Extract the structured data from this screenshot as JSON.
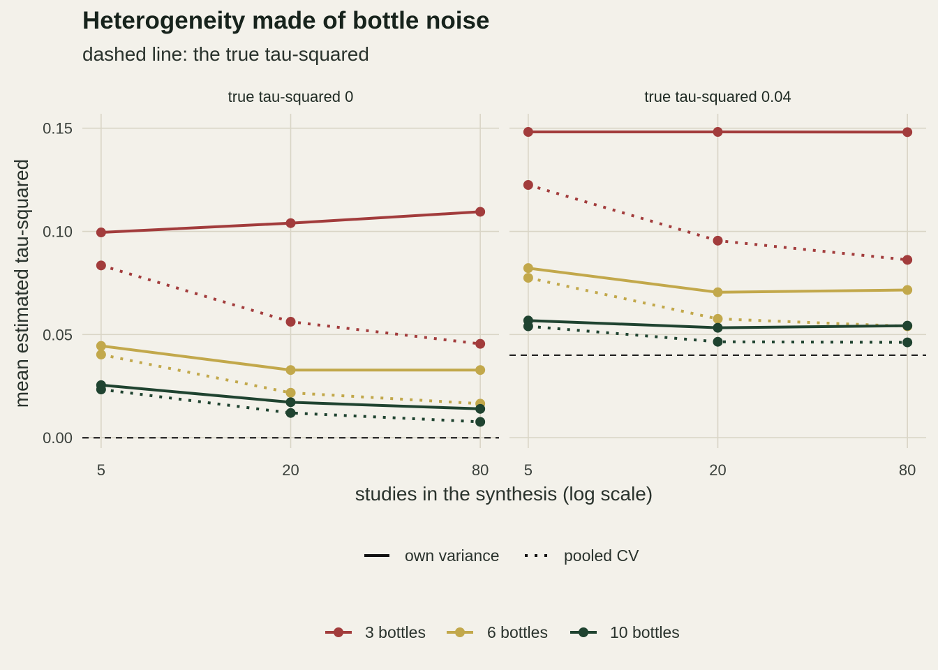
{
  "title": "Heterogeneity made of bottle noise",
  "subtitle": "dashed line: the true tau-squared",
  "chart_data": {
    "type": "line",
    "x_scale": "log",
    "xlabel": "studies in the synthesis (log scale)",
    "ylabel": "mean estimated tau-squared",
    "x": [
      5,
      20,
      80
    ],
    "x_tick_labels": [
      "5",
      "20",
      "80"
    ],
    "y_ticks": [
      0,
      0.05,
      0.1,
      0.15
    ],
    "y_tick_labels": [
      "0.00",
      "0.05",
      "0.10",
      "0.15"
    ],
    "ylim": [
      -0.005,
      0.157
    ],
    "grid": true,
    "facets": [
      {
        "strip": "true tau-squared 0",
        "true_tau2": 0,
        "series": [
          {
            "bottles": "3 bottles",
            "method": "own variance",
            "values": [
              0.0995,
              0.104,
              0.1095
            ]
          },
          {
            "bottles": "3 bottles",
            "method": "pooled CV",
            "values": [
              0.0835,
              0.0562,
              0.0455
            ]
          },
          {
            "bottles": "6 bottles",
            "method": "own variance",
            "values": [
              0.0445,
              0.0328,
              0.0328
            ]
          },
          {
            "bottles": "6 bottles",
            "method": "pooled CV",
            "values": [
              0.0403,
              0.0218,
              0.0165
            ]
          },
          {
            "bottles": "10 bottles",
            "method": "own variance",
            "values": [
              0.0255,
              0.0172,
              0.014
            ]
          },
          {
            "bottles": "10 bottles",
            "method": "pooled CV",
            "values": [
              0.0234,
              0.012,
              0.0077
            ]
          }
        ]
      },
      {
        "strip": "true tau-squared 0.04",
        "true_tau2": 0.04,
        "series": [
          {
            "bottles": "3 bottles",
            "method": "own variance",
            "values": [
              0.1482,
              0.1482,
              0.1481
            ]
          },
          {
            "bottles": "3 bottles",
            "method": "pooled CV",
            "values": [
              0.1225,
              0.0955,
              0.0862
            ]
          },
          {
            "bottles": "6 bottles",
            "method": "own variance",
            "values": [
              0.0822,
              0.0705,
              0.0716
            ]
          },
          {
            "bottles": "6 bottles",
            "method": "pooled CV",
            "values": [
              0.0775,
              0.0576,
              0.054
            ]
          },
          {
            "bottles": "10 bottles",
            "method": "own variance",
            "values": [
              0.0568,
              0.0533,
              0.0543
            ]
          },
          {
            "bottles": "10 bottles",
            "method": "pooled CV",
            "values": [
              0.054,
              0.0465,
              0.0462
            ]
          }
        ]
      }
    ],
    "legend_linetype": {
      "placement": "bottom",
      "entries": [
        {
          "label": "own variance",
          "dash": "solid"
        },
        {
          "label": "pooled CV",
          "dash": "dotted"
        }
      ]
    },
    "legend_color": {
      "placement": "bottom",
      "entries": [
        {
          "label": "3 bottles",
          "color": "#a23c3c"
        },
        {
          "label": "6 bottles",
          "color": "#c2a84b"
        },
        {
          "label": "10 bottles",
          "color": "#1f4330"
        }
      ]
    },
    "colors": {
      "3 bottles": "#a23c3c",
      "6 bottles": "#c2a84b",
      "10 bottles": "#1f4330",
      "grid": "#d9d5c6",
      "reference_line": "#222222",
      "background": "#f3f1ea"
    }
  }
}
